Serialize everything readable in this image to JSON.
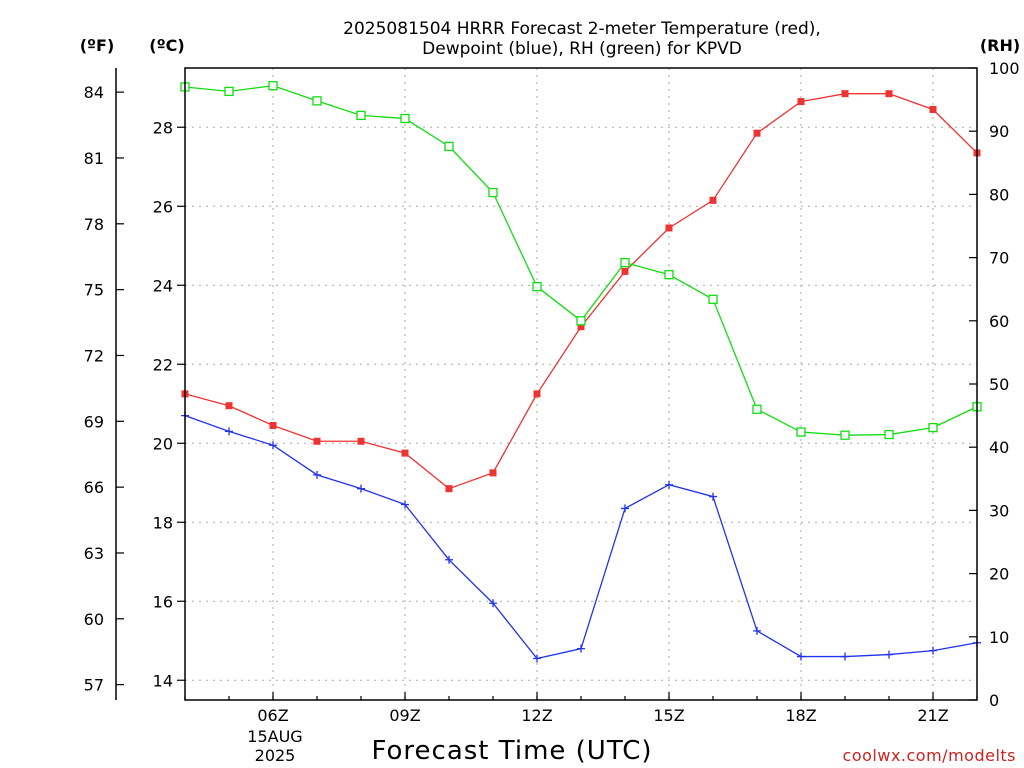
{
  "title_line1": "2025081504 HRRR Forecast 2-meter Temperature (red),",
  "title_line2": "Dewpoint (blue), RH (green) for KPVD",
  "units": {
    "fahrenheit": "(ºF)",
    "celsius": "(ºC)",
    "rh": "(RH)"
  },
  "xlabel": "Forecast Time (UTC)",
  "date_label_line1": "15AUG",
  "date_label_line2": "2025",
  "credit": "coolwx.com/modelts",
  "colors": {
    "temperature": "#ee3333",
    "dewpoint": "#2233ee",
    "rh": "#11dd11"
  },
  "chart_data": {
    "type": "line",
    "x": [
      "04Z",
      "05Z",
      "06Z",
      "07Z",
      "08Z",
      "09Z",
      "10Z",
      "11Z",
      "12Z",
      "13Z",
      "14Z",
      "15Z",
      "16Z",
      "17Z",
      "18Z",
      "19Z",
      "20Z",
      "21Z",
      "22Z"
    ],
    "x_tick_labels": [
      "06Z",
      "09Z",
      "12Z",
      "15Z",
      "18Z",
      "21Z"
    ],
    "series": [
      {
        "name": "Temperature",
        "axis": "celsius",
        "marker": "filled-square",
        "values": [
          21.25,
          20.95,
          20.45,
          20.05,
          20.05,
          19.75,
          18.85,
          19.25,
          21.25,
          22.95,
          24.35,
          25.45,
          26.15,
          27.85,
          28.65,
          28.85,
          28.85,
          28.45,
          27.35
        ]
      },
      {
        "name": "Dewpoint",
        "axis": "celsius",
        "marker": "plus",
        "values": [
          20.7,
          20.3,
          19.95,
          19.2,
          18.85,
          18.45,
          17.05,
          15.95,
          14.55,
          14.8,
          18.35,
          18.95,
          18.65,
          15.25,
          14.6,
          14.6,
          14.65,
          14.75,
          14.95
        ]
      },
      {
        "name": "RH",
        "axis": "rh",
        "marker": "open-square",
        "values": [
          97,
          96.3,
          97.2,
          94.8,
          92.5,
          92,
          87.6,
          80.3,
          65.4,
          60,
          69.2,
          67.3,
          63.4,
          46,
          42.4,
          41.9,
          42,
          43.1,
          46.4
        ]
      }
    ],
    "celsius_axis": {
      "range": [
        13.5,
        29.5
      ],
      "ticks": [
        14,
        16,
        18,
        20,
        22,
        24,
        26,
        28
      ]
    },
    "fahrenheit_axis": {
      "ticks": [
        57,
        60,
        63,
        66,
        69,
        72,
        75,
        78,
        81,
        84
      ]
    },
    "rh_axis": {
      "range": [
        0,
        100
      ],
      "ticks": [
        0,
        10,
        20,
        30,
        40,
        50,
        60,
        70,
        80,
        90,
        100
      ]
    },
    "grid": true
  }
}
